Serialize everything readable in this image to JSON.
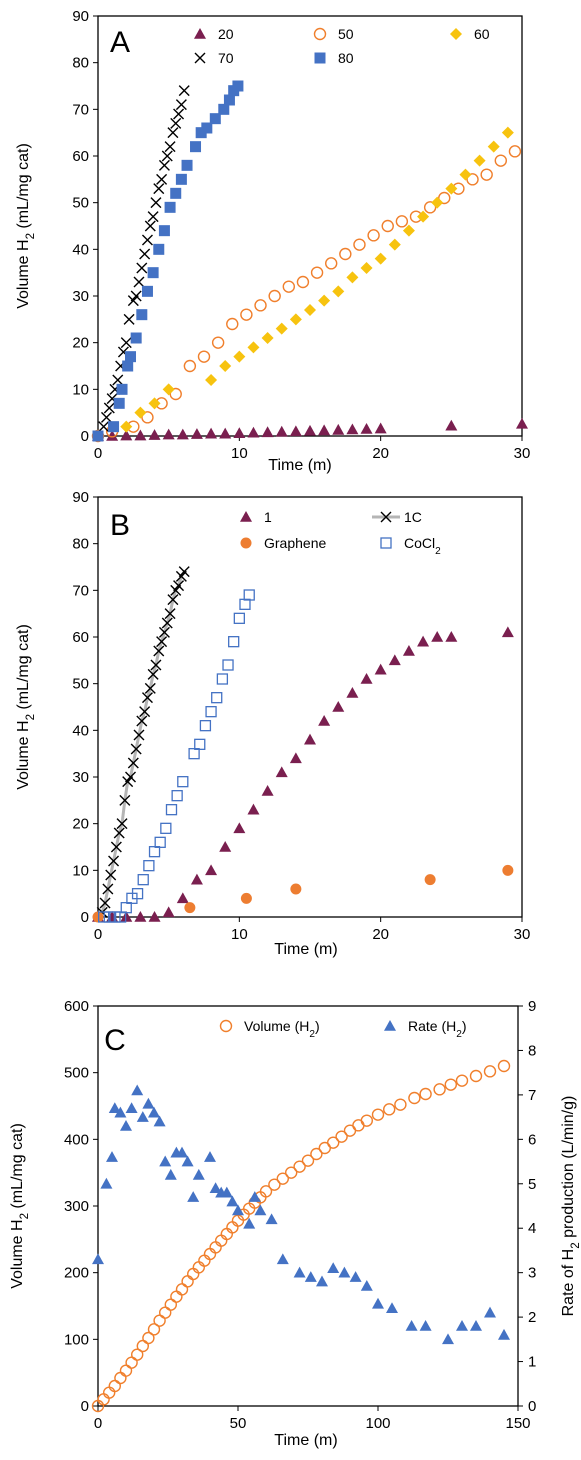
{
  "chart_data": [
    {
      "panel": "A",
      "type": "scatter",
      "xlabel": "Time (m)",
      "ylabel": "Volume H₂ (mL/mg cat)",
      "xlim": [
        0,
        30
      ],
      "ylim": [
        0,
        90
      ],
      "xticks": [
        0,
        10,
        20,
        30
      ],
      "yticks": [
        0,
        10,
        20,
        30,
        40,
        50,
        60,
        70,
        80,
        90
      ],
      "legend_position": "top",
      "series": [
        {
          "name": "20",
          "marker": "triangle",
          "color": "#7a1f4f",
          "x": [
            0,
            1,
            2,
            3,
            4,
            5,
            6,
            7,
            8,
            9,
            10,
            11,
            12,
            13,
            14,
            15,
            16,
            17,
            18,
            19,
            20,
            25,
            30
          ],
          "y": [
            0,
            0,
            0.1,
            0.1,
            0.2,
            0.3,
            0.3,
            0.4,
            0.5,
            0.5,
            0.6,
            0.7,
            0.8,
            0.9,
            1.0,
            1.1,
            1.2,
            1.3,
            1.4,
            1.5,
            1.6,
            2.2,
            2.6
          ]
        },
        {
          "name": "50",
          "marker": "circle-open",
          "color": "#f07f2c",
          "x": [
            0,
            1,
            2.5,
            3.5,
            4.5,
            5.5,
            6.5,
            7.5,
            8.5,
            9.5,
            10.5,
            11.5,
            12.5,
            13.5,
            14.5,
            15.5,
            16.5,
            17.5,
            18.5,
            19.5,
            20.5,
            21.5,
            22.5,
            23.5,
            24.5,
            25.5,
            26.5,
            27.5,
            28.5,
            29.5
          ],
          "y": [
            0,
            1,
            2,
            4,
            7,
            9,
            15,
            17,
            20,
            24,
            26,
            28,
            30,
            32,
            33,
            35,
            37,
            39,
            41,
            43,
            45,
            46,
            47,
            49,
            51,
            53,
            55,
            56,
            59,
            61
          ]
        },
        {
          "name": "60",
          "marker": "diamond",
          "color": "#f7c30f",
          "x": [
            2,
            3,
            4,
            5,
            8,
            9,
            10,
            11,
            12,
            13,
            14,
            15,
            16,
            17,
            18,
            19,
            20,
            21,
            22,
            23,
            24,
            25,
            26,
            27,
            28,
            29
          ],
          "y": [
            2,
            5,
            7,
            10,
            12,
            15,
            17,
            19,
            21,
            23,
            25,
            27,
            29,
            31,
            34,
            36,
            38,
            41,
            44,
            47,
            50,
            53,
            56,
            59,
            62,
            65
          ]
        },
        {
          "name": "70",
          "marker": "x",
          "color": "#000000",
          "x": [
            0.4,
            0.6,
            0.8,
            1.0,
            1.2,
            1.4,
            1.6,
            1.8,
            2.0,
            2.2,
            2.5,
            2.7,
            2.9,
            3.1,
            3.3,
            3.5,
            3.7,
            3.9,
            4.1,
            4.3,
            4.5,
            4.7,
            4.9,
            5.1,
            5.3,
            5.5,
            5.7,
            5.9,
            6.1
          ],
          "y": [
            2,
            4,
            6,
            8,
            10,
            12,
            15,
            18,
            20,
            25,
            29,
            30,
            33,
            36,
            39,
            42,
            45,
            47,
            50,
            53,
            55,
            58,
            60,
            62,
            65,
            67,
            69,
            71,
            74
          ]
        },
        {
          "name": "80",
          "marker": "square",
          "color": "#4472c4",
          "x": [
            0,
            1.1,
            1.5,
            1.7,
            2.1,
            2.3,
            2.7,
            3.1,
            3.5,
            3.9,
            4.3,
            4.7,
            5.1,
            5.5,
            5.9,
            6.3,
            6.9,
            7.3,
            7.7,
            8.3,
            8.9,
            9.3,
            9.6,
            9.9
          ],
          "y": [
            0,
            2,
            7,
            10,
            15,
            17,
            21,
            26,
            31,
            35,
            40,
            44,
            49,
            52,
            55,
            58,
            62,
            65,
            66,
            68,
            70,
            72,
            74,
            75
          ]
        }
      ]
    },
    {
      "panel": "B",
      "type": "scatter",
      "xlabel": "Time (m)",
      "ylabel": "Volume H₂ (mL/mg cat)",
      "xlim": [
        0,
        30
      ],
      "ylim": [
        0,
        90
      ],
      "xticks": [
        0,
        10,
        20,
        30
      ],
      "yticks": [
        0,
        10,
        20,
        30,
        40,
        50,
        60,
        70,
        80,
        90
      ],
      "legend_position": "top",
      "series": [
        {
          "name": "1",
          "marker": "triangle",
          "color": "#7a1f4f",
          "x": [
            0,
            1,
            2,
            3,
            4,
            5,
            6,
            7,
            8,
            9,
            10,
            11,
            12,
            13,
            14,
            15,
            16,
            17,
            18,
            19,
            20,
            21,
            22,
            23,
            24,
            25,
            29
          ],
          "y": [
            0,
            0,
            0,
            0,
            0,
            1,
            4,
            8,
            10,
            15,
            19,
            23,
            27,
            31,
            34,
            38,
            42,
            45,
            48,
            51,
            53,
            55,
            57,
            59,
            60,
            60,
            61
          ]
        },
        {
          "name": "1C",
          "marker": "x-line",
          "color": "#000000",
          "line_color": "#b5b5b5",
          "x": [
            0.3,
            0.5,
            0.7,
            0.9,
            1.1,
            1.3,
            1.5,
            1.7,
            1.9,
            2.1,
            2.3,
            2.5,
            2.7,
            2.9,
            3.1,
            3.3,
            3.5,
            3.7,
            3.9,
            4.1,
            4.3,
            4.5,
            4.7,
            4.9,
            5.1,
            5.3,
            5.5,
            5.7,
            5.9,
            6.1
          ],
          "y": [
            1,
            3,
            6,
            9,
            12,
            15,
            18,
            20,
            25,
            29,
            30,
            33,
            36,
            39,
            42,
            44,
            47,
            49,
            52,
            54,
            57,
            59,
            61,
            63,
            65,
            68,
            70,
            71,
            73,
            74
          ]
        },
        {
          "name": "Graphene",
          "marker": "circle-filled",
          "color": "#ed7d31",
          "x": [
            0,
            6.5,
            10.5,
            14,
            23.5,
            29
          ],
          "y": [
            0,
            2,
            4,
            6,
            8,
            10
          ]
        },
        {
          "name": "CoCl2",
          "display_name": "CoCl₂",
          "marker": "square-open",
          "color": "#4472c4",
          "x": [
            0.4,
            0.8,
            1.2,
            1.6,
            2.0,
            2.4,
            2.8,
            3.2,
            3.6,
            4.0,
            4.4,
            4.8,
            5.2,
            5.6,
            6.0,
            6.8,
            7.2,
            7.6,
            8.0,
            8.4,
            8.8,
            9.2,
            9.6,
            10.0,
            10.4,
            10.7
          ],
          "y": [
            0,
            0,
            0,
            0,
            2,
            4,
            5,
            8,
            11,
            14,
            16,
            19,
            23,
            26,
            29,
            35,
            37,
            41,
            44,
            47,
            51,
            54,
            59,
            64,
            67,
            69
          ]
        }
      ]
    },
    {
      "panel": "C",
      "type": "scatter",
      "xlabel": "Time (m)",
      "ylabel": "Volume H₂ (mL/mg cat)",
      "y2label": "Rate of H₂ production (L/min/g)",
      "xlim": [
        0,
        150
      ],
      "ylim": [
        0,
        600
      ],
      "y2lim": [
        0,
        9
      ],
      "xticks": [
        0,
        50,
        100,
        150
      ],
      "yticks": [
        0,
        100,
        200,
        300,
        400,
        500,
        600
      ],
      "y2ticks": [
        0,
        1,
        2,
        3,
        4,
        5,
        6,
        7,
        8,
        9
      ],
      "legend_position": "top",
      "series": [
        {
          "name": "Volume (H₂)",
          "marker": "circle-open",
          "color": "#f07f2c",
          "axis": "left",
          "x": [
            0,
            2,
            4,
            6,
            8,
            10,
            12,
            14,
            16,
            18,
            20,
            22,
            24,
            26,
            28,
            30,
            32,
            34,
            36,
            38,
            40,
            42,
            44,
            46,
            48,
            50,
            52,
            54,
            56,
            58,
            60,
            63,
            66,
            69,
            72,
            75,
            78,
            81,
            84,
            87,
            90,
            93,
            96,
            100,
            104,
            108,
            113,
            117,
            122,
            126,
            130,
            135,
            140,
            145
          ],
          "y": [
            0,
            10,
            20,
            30,
            42,
            53,
            65,
            77,
            90,
            102,
            115,
            128,
            140,
            152,
            164,
            175,
            187,
            198,
            208,
            218,
            228,
            238,
            248,
            258,
            268,
            278,
            287,
            296,
            305,
            313,
            322,
            332,
            341,
            350,
            359,
            368,
            378,
            387,
            395,
            404,
            413,
            421,
            428,
            437,
            445,
            452,
            462,
            468,
            475,
            482,
            488,
            495,
            502,
            510
          ]
        },
        {
          "name": "Rate (H₂)",
          "marker": "triangle",
          "color": "#4472c4",
          "axis": "right",
          "x": [
            0,
            3,
            5,
            6,
            8,
            10,
            12,
            14,
            16,
            18,
            20,
            22,
            24,
            26,
            28,
            30,
            32,
            34,
            36,
            40,
            42,
            44,
            46,
            48,
            50,
            54,
            56,
            58,
            62,
            66,
            72,
            76,
            80,
            84,
            88,
            92,
            96,
            100,
            105,
            112,
            117,
            125,
            130,
            135,
            140,
            145
          ],
          "y": [
            3.3,
            5.0,
            5.6,
            6.7,
            6.6,
            6.3,
            6.7,
            7.1,
            6.5,
            6.8,
            6.6,
            6.4,
            5.5,
            5.2,
            5.7,
            5.7,
            5.5,
            4.7,
            5.2,
            5.6,
            4.9,
            4.8,
            4.8,
            4.6,
            4.4,
            4.1,
            4.7,
            4.4,
            4.2,
            3.3,
            3.0,
            2.9,
            2.8,
            3.1,
            3.0,
            2.9,
            2.7,
            2.3,
            2.2,
            1.8,
            1.8,
            1.5,
            1.8,
            1.8,
            2.1,
            1.6
          ]
        }
      ]
    }
  ]
}
